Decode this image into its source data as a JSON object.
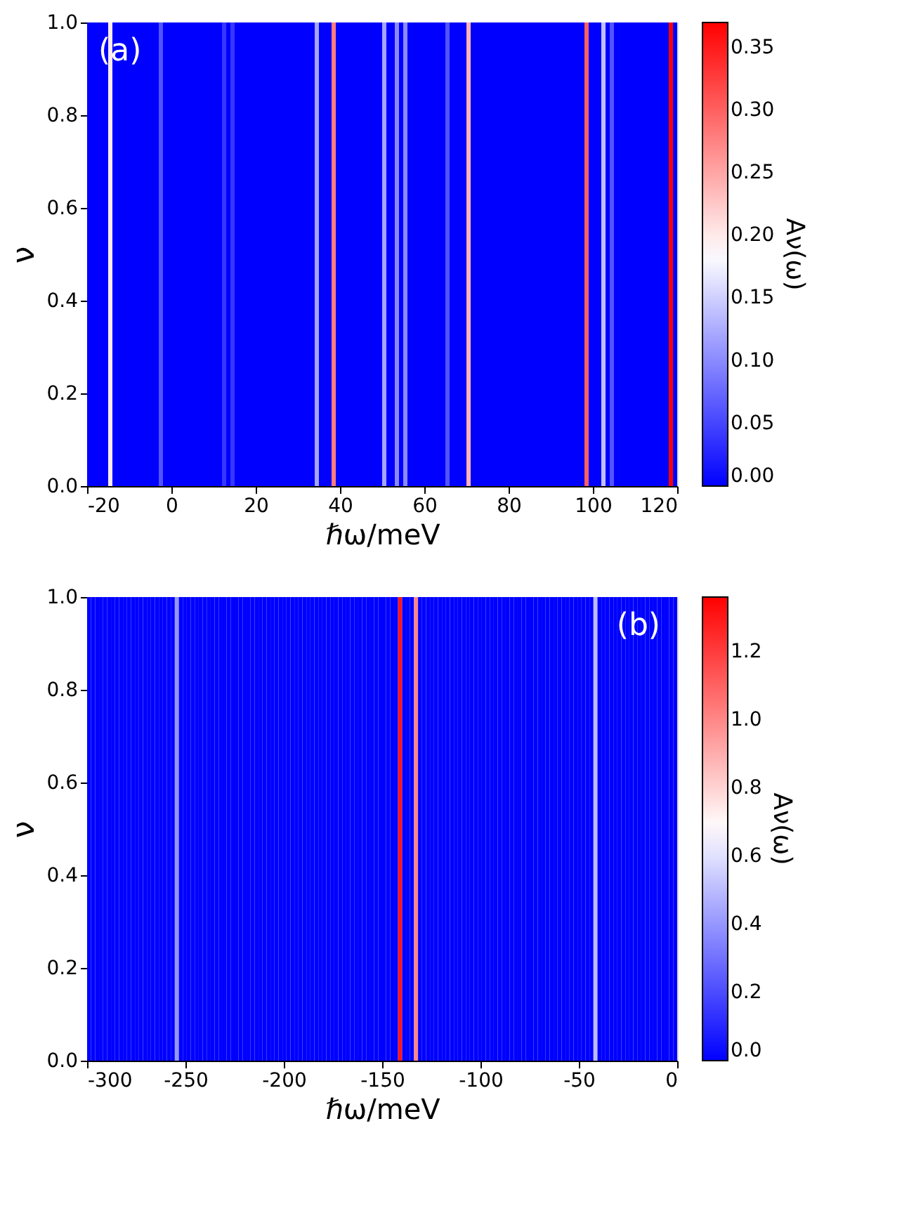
{
  "chart_data": [
    {
      "type": "heatmap",
      "xlabel": "ℏω/meV",
      "ylabel": "ν",
      "clabel": "Aν(ω)",
      "annotations": [
        "(a)"
      ],
      "cells": [
        [
          0,
          0,
          0,
          0,
          0,
          0.2,
          0,
          0,
          0,
          0,
          0,
          0,
          0,
          0,
          0,
          0,
          0,
          0.06,
          0,
          0,
          0,
          0,
          0,
          0,
          0,
          0,
          0,
          0,
          0,
          0,
          0,
          0,
          0.04,
          0,
          0.04,
          0,
          0,
          0,
          0,
          0,
          0,
          0,
          0,
          0,
          0,
          0,
          0,
          0,
          0,
          0,
          0,
          0,
          0,
          0,
          0.12,
          0,
          0,
          0,
          0.28,
          0,
          0,
          0,
          0,
          0,
          0,
          0,
          0,
          0,
          0,
          0,
          0.12,
          0,
          0,
          0.1,
          0,
          0.1,
          0,
          0,
          0,
          0,
          0,
          0,
          0,
          0,
          0,
          0.06,
          0,
          0,
          0,
          0,
          0.24,
          0,
          0,
          0,
          0,
          0,
          0,
          0,
          0,
          0,
          0,
          0,
          0,
          0,
          0,
          0,
          0,
          0,
          0,
          0,
          0,
          0,
          0,
          0,
          0,
          0,
          0,
          0,
          0.3,
          0,
          0,
          0,
          0.14,
          0,
          0.06,
          0,
          0,
          0,
          0,
          0,
          0,
          0,
          0,
          0,
          0,
          0,
          0,
          0,
          0.37,
          0
        ]
      ],
      "xlim": [
        -20,
        120
      ],
      "xticks": [
        -20,
        0,
        20,
        40,
        60,
        80,
        100,
        120
      ],
      "ylim": [
        0,
        1
      ],
      "yticks": [
        {
          "value": 0,
          "label": "0.0"
        },
        {
          "value": 0.2,
          "label": "0.2"
        },
        {
          "value": 0.4,
          "label": "0.4"
        },
        {
          "value": 0.6,
          "label": "0.6"
        },
        {
          "value": 0.8,
          "label": "0.8"
        },
        {
          "value": 1,
          "label": "1.0"
        }
      ],
      "clim": [
        0,
        0.37
      ],
      "cticks": [
        {
          "value": 0,
          "label": "0.00"
        },
        {
          "value": 0.05,
          "label": "0.05"
        },
        {
          "value": 0.1,
          "label": "0.10"
        },
        {
          "value": 0.15,
          "label": "0.15"
        },
        {
          "value": 0.2,
          "label": "0.20"
        },
        {
          "value": 0.25,
          "label": "0.25"
        },
        {
          "value": 0.3,
          "label": "0.30"
        },
        {
          "value": 0.35,
          "label": "0.35"
        }
      ]
    },
    {
      "type": "heatmap",
      "xlabel": "ℏω/meV",
      "ylabel": "ν",
      "clabel": "Aν(ω)",
      "annotations": [
        "(b)"
      ],
      "cells": [
        [
          0,
          0,
          0,
          0,
          0,
          0,
          0,
          0,
          0,
          0,
          0,
          0,
          0,
          0,
          0,
          0,
          0,
          0,
          0,
          0,
          0,
          0,
          0.4,
          0,
          0,
          0,
          0,
          0,
          0,
          0,
          0,
          0,
          0,
          0,
          0,
          0,
          0,
          0,
          0,
          0,
          0,
          0,
          0,
          0,
          0,
          0,
          0,
          0,
          0,
          0,
          0,
          0,
          0,
          0,
          0,
          0,
          0,
          0,
          0,
          0,
          0,
          0,
          0,
          0,
          0,
          0,
          0,
          0,
          0,
          0,
          0,
          0,
          0,
          0,
          0,
          0,
          0,
          0,
          1.3,
          0,
          0,
          0,
          1.0,
          0,
          0,
          0,
          0,
          0,
          0,
          0,
          0,
          0,
          0,
          0,
          0,
          0,
          0,
          0,
          0,
          0,
          0,
          0,
          0,
          0,
          0,
          0,
          0,
          0,
          0,
          0,
          0,
          0,
          0,
          0,
          0,
          0,
          0,
          0,
          0,
          0,
          0,
          0,
          0,
          0,
          0,
          0,
          0,
          0.5,
          0,
          0,
          0,
          0,
          0,
          0,
          0,
          0,
          0,
          0,
          0,
          0,
          0,
          0,
          0,
          0,
          0,
          0,
          0,
          0
        ]
      ],
      "xlim": [
        -300,
        0
      ],
      "xticks": [
        -300,
        -250,
        -200,
        -150,
        -100,
        -50,
        0
      ],
      "ylim": [
        0,
        1
      ],
      "yticks": [
        {
          "value": 0,
          "label": "0.0"
        },
        {
          "value": 0.2,
          "label": "0.2"
        },
        {
          "value": 0.4,
          "label": "0.4"
        },
        {
          "value": 0.6,
          "label": "0.6"
        },
        {
          "value": 0.8,
          "label": "0.8"
        },
        {
          "value": 1,
          "label": "1.0"
        }
      ],
      "clim": [
        0,
        1.36
      ],
      "cticks": [
        {
          "value": 0,
          "label": "0.0"
        },
        {
          "value": 0.2,
          "label": "0.2"
        },
        {
          "value": 0.4,
          "label": "0.4"
        },
        {
          "value": 0.6,
          "label": "0.6"
        },
        {
          "value": 0.8,
          "label": "0.8"
        },
        {
          "value": 1,
          "label": "1.0"
        },
        {
          "value": 1.2,
          "label": "1.2"
        }
      ]
    }
  ]
}
